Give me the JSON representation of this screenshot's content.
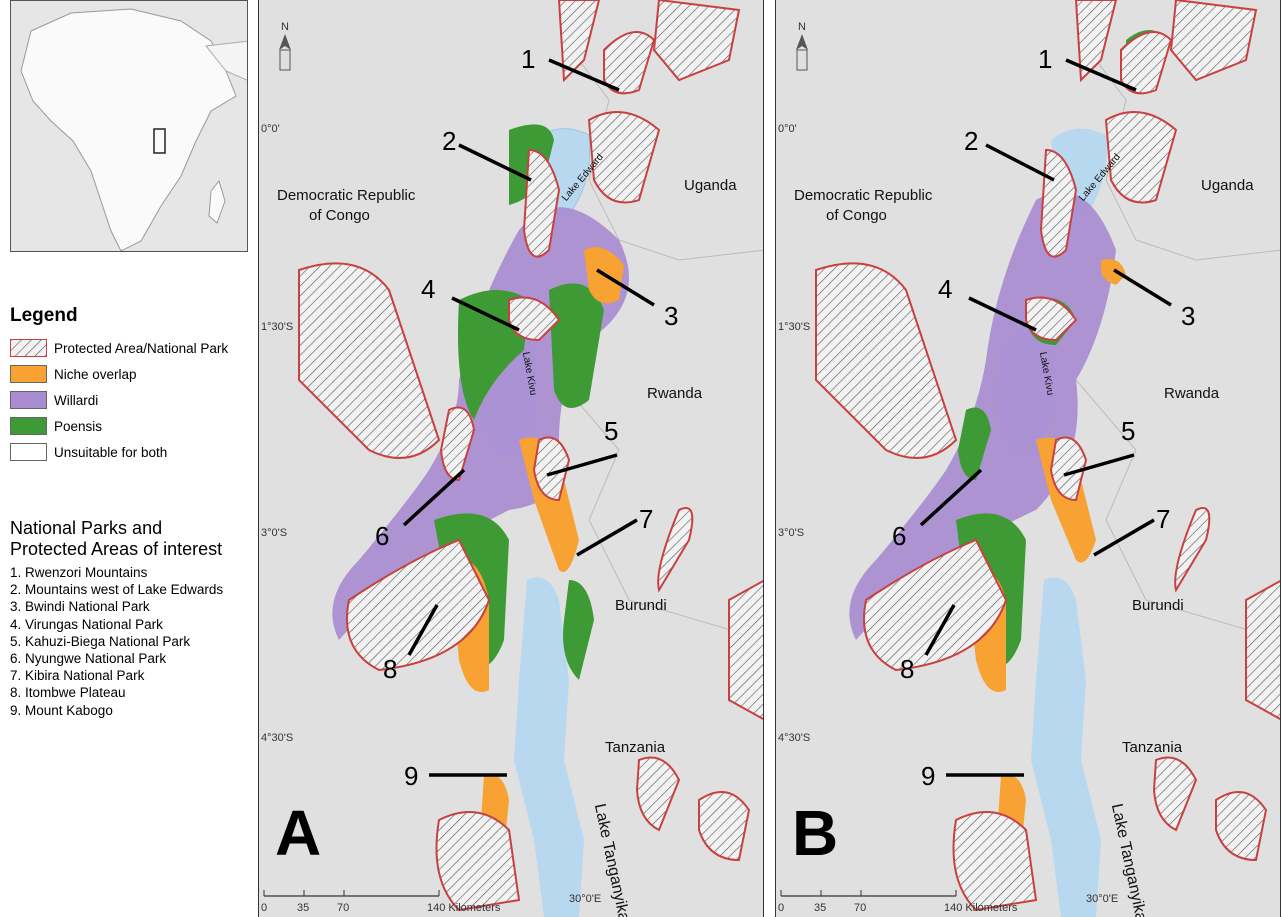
{
  "legend": {
    "title": "Legend",
    "items": [
      {
        "label": "Protected Area/National Park",
        "swatch": "hatched",
        "color": "#c94040"
      },
      {
        "label": "Niche overlap",
        "swatch": "fill",
        "color": "#f7a233"
      },
      {
        "label": "Willardi",
        "swatch": "fill",
        "color": "#a88bd1"
      },
      {
        "label": "Poensis",
        "swatch": "fill",
        "color": "#3e9a35"
      },
      {
        "label": "Unsuitable for both",
        "swatch": "fill",
        "color": "#ffffff"
      }
    ]
  },
  "parks": {
    "title_line1": "National Parks and",
    "title_line2": "Protected Areas of interest",
    "items": [
      "1. Rwenzori Mountains",
      "2. Mountains west of Lake Edwards",
      "3. Bwindi National Park",
      "4. Virungas National Park",
      "5. Kahuzi-Biega National Park",
      "6. Nyungwe National Park",
      "7. Kibira National Park",
      "8. Itombwe Plateau",
      "9. Mount  Kabogo"
    ]
  },
  "map_labels": {
    "drc_line1": "Democratic Republic",
    "drc_line2": "of Congo",
    "uganda": "Uganda",
    "rwanda": "Rwanda",
    "burundi": "Burundi",
    "tanzania": "Tanzania",
    "lake_edward": "Lake Edward",
    "lake_kivu": "Lake Kivu",
    "lake_tanganyika": "Lake Tanganyika",
    "north": "N",
    "lat_0": "0°0'",
    "lat_130": "1°30'S",
    "lat_3": "3°0'S",
    "lat_430": "4°30'S",
    "lon_30": "30°0'E",
    "scale_ticks": [
      "0",
      "35",
      "70",
      "140 Kilometers"
    ]
  },
  "panels": [
    {
      "letter": "A"
    },
    {
      "letter": "B"
    }
  ],
  "site_numbers": [
    "1",
    "2",
    "3",
    "4",
    "5",
    "6",
    "7",
    "8",
    "9"
  ],
  "colors": {
    "background": "#e0e0e0",
    "water": "#b8d8f0",
    "protected_outline": "#c94040",
    "niche_overlap": "#f7a233",
    "willardi": "#a88bd1",
    "poensis": "#3e9a35"
  }
}
